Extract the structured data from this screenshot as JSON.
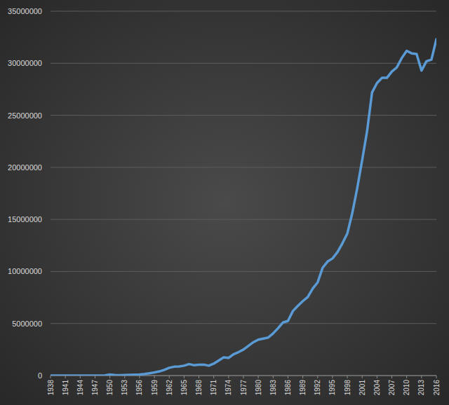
{
  "chart_data": {
    "type": "line",
    "x": [
      1938,
      1939,
      1940,
      1941,
      1942,
      1943,
      1944,
      1945,
      1946,
      1947,
      1948,
      1949,
      1950,
      1951,
      1952,
      1953,
      1954,
      1955,
      1956,
      1957,
      1958,
      1959,
      1960,
      1961,
      1962,
      1963,
      1964,
      1965,
      1966,
      1967,
      1968,
      1969,
      1970,
      1971,
      1972,
      1973,
      1974,
      1975,
      1976,
      1977,
      1978,
      1979,
      1980,
      1981,
      1982,
      1983,
      1984,
      1985,
      1986,
      1987,
      1988,
      1989,
      1990,
      1991,
      1992,
      1993,
      1994,
      1995,
      1996,
      1997,
      1998,
      1999,
      2000,
      2001,
      2002,
      2003,
      2004,
      2005,
      2006,
      2007,
      2008,
      2009,
      2010,
      2011,
      2012,
      2013,
      2014,
      2015,
      2016
    ],
    "values": [
      0,
      0,
      0,
      0,
      0,
      0,
      0,
      0,
      0,
      0,
      0,
      20000,
      100000,
      50000,
      30000,
      50000,
      60000,
      80000,
      100000,
      150000,
      220000,
      300000,
      400000,
      550000,
      750000,
      850000,
      870000,
      950000,
      1100000,
      1000000,
      1050000,
      1050000,
      950000,
      1150000,
      1450000,
      1750000,
      1700000,
      2050000,
      2250000,
      2500000,
      2850000,
      3200000,
      3450000,
      3550000,
      3650000,
      4050000,
      4550000,
      5100000,
      5250000,
      6200000,
      6700000,
      7150000,
      7550000,
      8350000,
      8950000,
      10350000,
      10950000,
      11250000,
      11850000,
      12700000,
      13650000,
      15600000,
      18000000,
      20700000,
      23500000,
      27200000,
      28100000,
      28600000,
      28600000,
      29200000,
      29600000,
      30500000,
      31200000,
      30950000,
      30900000,
      29300000,
      30200000,
      30350000,
      32300000
    ],
    "color": "#5b9bd5",
    "xlim": [
      1938,
      2016
    ],
    "xticks": [
      1938,
      1941,
      1944,
      1947,
      1950,
      1953,
      1956,
      1959,
      1962,
      1965,
      1968,
      1971,
      1974,
      1977,
      1980,
      1983,
      1986,
      1989,
      1992,
      1995,
      1998,
      2001,
      2004,
      2007,
      2010,
      2013,
      2016
    ],
    "ylim": [
      0,
      35000000
    ],
    "yticks": [
      0,
      5000000,
      10000000,
      15000000,
      20000000,
      25000000,
      30000000,
      35000000
    ],
    "grid": true
  }
}
